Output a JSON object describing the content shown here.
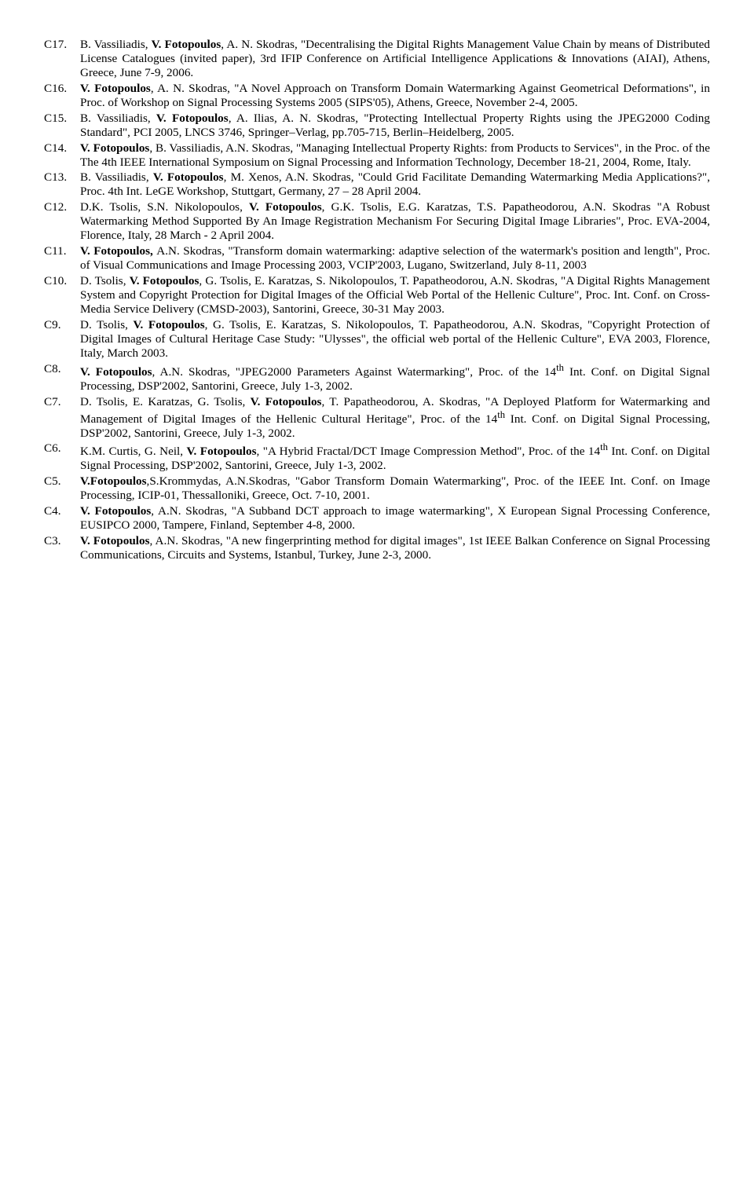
{
  "entries": [
    {
      "label": "C17.",
      "segments": [
        {
          "t": "B. Vassiliadis, "
        },
        {
          "t": "V. Fotopoulos",
          "b": true
        },
        {
          "t": ", A. N. Skodras, \"Decentralising the Digital Rights Management Value Chain by means of Distributed License Catalogues (invited paper), 3rd IFIP Conference on Artificial Intelligence Applications & Innovations (AIAI), Athens, Greece, June 7-9, 2006."
        }
      ]
    },
    {
      "label": "C16.",
      "segments": [
        {
          "t": "V. Fotopoulos",
          "b": true
        },
        {
          "t": ", A. N. Skodras, \"A Novel Approach on Transform Domain Watermarking Against Geometrical Deformations\", in Proc. of Workshop on Signal Processing Systems 2005 (SIPS'05), Athens, Greece, November 2-4, 2005."
        }
      ]
    },
    {
      "label": "C15.",
      "segments": [
        {
          "t": "B. Vassiliadis, "
        },
        {
          "t": "V. Fotopoulos",
          "b": true
        },
        {
          "t": ", A. Ilias, A. N. Skodras, \"Protecting Intellectual Property Rights using the JPEG2000 Coding Standard\", PCI 2005, LNCS 3746, Springer–Verlag, pp.705-715, Berlin–Heidelberg, 2005."
        }
      ]
    },
    {
      "label": "C14.",
      "segments": [
        {
          "t": "V. Fotopoulos",
          "b": true
        },
        {
          "t": ", B. Vassiliadis, A.N. Skodras, \"Managing Intellectual Property Rights: from Products to Services\", in the Proc. of the The 4th IEEE International Symposium on Signal Processing and Information Technology, December 18-21, 2004, Rome, Italy."
        }
      ]
    },
    {
      "label": "C13.",
      "segments": [
        {
          "t": "B. Vassiliadis, "
        },
        {
          "t": "V. Fotopoulos",
          "b": true
        },
        {
          "t": ", M. Xenos, A.N. Skodras, \"Could Grid Facilitate Demanding Watermarking Media Applications?\", Proc. 4th Int. LeGE Workshop, Stuttgart, Germany, 27 – 28 April 2004."
        }
      ]
    },
    {
      "label": "C12.",
      "segments": [
        {
          "t": "D.K. Tsolis, S.N. Nikolopoulos, "
        },
        {
          "t": "V. Fotopoulos",
          "b": true
        },
        {
          "t": ", G.K. Tsolis, E.G. Karatzas, T.S. Papatheodorou, A.N. Skodras \"A Robust Watermarking Method Supported By An Image Registration Mechanism For Securing Digital Image Libraries\", Proc. EVA-2004, Florence, Italy, 28 March - 2 April 2004."
        }
      ]
    },
    {
      "label": "C11.",
      "segments": [
        {
          "t": "V. Fotopoulos, ",
          "b": true
        },
        {
          "t": "A.N. Skodras, \"Transform domain watermarking: adaptive selection of the watermark's position and length\", Proc. of Visual Communications and Image Processing 2003, VCIP'2003, Lugano, Switzerland, July 8-11, 2003"
        }
      ]
    },
    {
      "label": "C10.",
      "segments": [
        {
          "t": "D. Tsolis, "
        },
        {
          "t": "V. Fotopoulos",
          "b": true
        },
        {
          "t": ", G. Tsolis, E. Karatzas, S. Nikolopoulos, T. Papatheodorou, A.N. Skodras, \"A Digital Rights Management System and Copyright Protection for Digital Images of the Official Web Portal of the Hellenic Culture\", Proc. Int. Conf. on Cross-Media Service Delivery (CMSD-2003), Santorini, Greece, 30-31 May 2003."
        }
      ]
    },
    {
      "label": "C9.",
      "segments": [
        {
          "t": "D. Tsolis, "
        },
        {
          "t": "V. Fotopoulos",
          "b": true
        },
        {
          "t": ", G. Tsolis, E. Karatzas, S. Nikolopoulos, T. Papatheodorou, A.N. Skodras, \"Copyright Protection of Digital Images of Cultural Heritage Case Study: \"Ulysses\", the official web portal of the Hellenic Culture\", EVA 2003, Florence, Italy, March 2003."
        }
      ]
    },
    {
      "label": "C8.",
      "segments": [
        {
          "t": "V. Fotopoulos",
          "b": true
        },
        {
          "t": ", A.N. Skodras, \"JPEG2000 Parameters Against Watermarking\", Proc. of the 14"
        },
        {
          "t": "th",
          "sup": true
        },
        {
          "t": " Int. Conf. on Digital Signal Processing, DSP'2002, Santorini, Greece, July 1-3, 2002."
        }
      ]
    },
    {
      "label": "C7.",
      "segments": [
        {
          "t": "D. Tsolis, E. Karatzas, G. Tsolis, "
        },
        {
          "t": "V. Fotopoulos",
          "b": true
        },
        {
          "t": ", T. Papatheodorou, A. Skodras, \"A Deployed Platform for Watermarking and Management of Digital Images of the Hellenic Cultural Heritage\", Proc. of the 14"
        },
        {
          "t": "th",
          "sup": true
        },
        {
          "t": " Int. Conf. on Digital Signal Processing, DSP'2002, Santorini, Greece, July 1-3, 2002."
        }
      ]
    },
    {
      "label": "C6.",
      "segments": [
        {
          "t": "K.M. Curtis, G. Neil, "
        },
        {
          "t": "V. Fotopoulos",
          "b": true
        },
        {
          "t": ", \"A Hybrid Fractal/DCT Image Compression Method\", Proc. of the 14"
        },
        {
          "t": "th",
          "sup": true
        },
        {
          "t": " Int. Conf. on Digital Signal Processing, DSP'2002, Santorini, Greece, July 1-3, 2002."
        }
      ]
    },
    {
      "label": "C5.",
      "segments": [
        {
          "t": "V.Fotopoulos",
          "b": true
        },
        {
          "t": ",S.Krommydas, A.N.Skodras, \"Gabor Transform Domain Watermarking\", Proc. of the IEEE Int. Conf. on Image Processing, ICIP-01, Thessalloniki, Greece, Oct. 7-10, 2001."
        }
      ]
    },
    {
      "label": "C4.",
      "segments": [
        {
          "t": "V. Fotopoulos",
          "b": true
        },
        {
          "t": ", A.N. Skodras, \"A Subband DCT approach to image watermarking\", X European Signal Processing Conference, EUSIPCO 2000, Tampere, Finland, September 4-8, 2000."
        }
      ]
    },
    {
      "label": "C3.",
      "segments": [
        {
          "t": "V. Fotopoulos",
          "b": true
        },
        {
          "t": ", A.N. Skodras, \"A new fingerprinting method for digital images\", 1st IEEE Balkan Conference on Signal Processing Communications, Circuits and Systems, Istanbul, Turkey, June 2-3, 2000."
        }
      ]
    }
  ]
}
